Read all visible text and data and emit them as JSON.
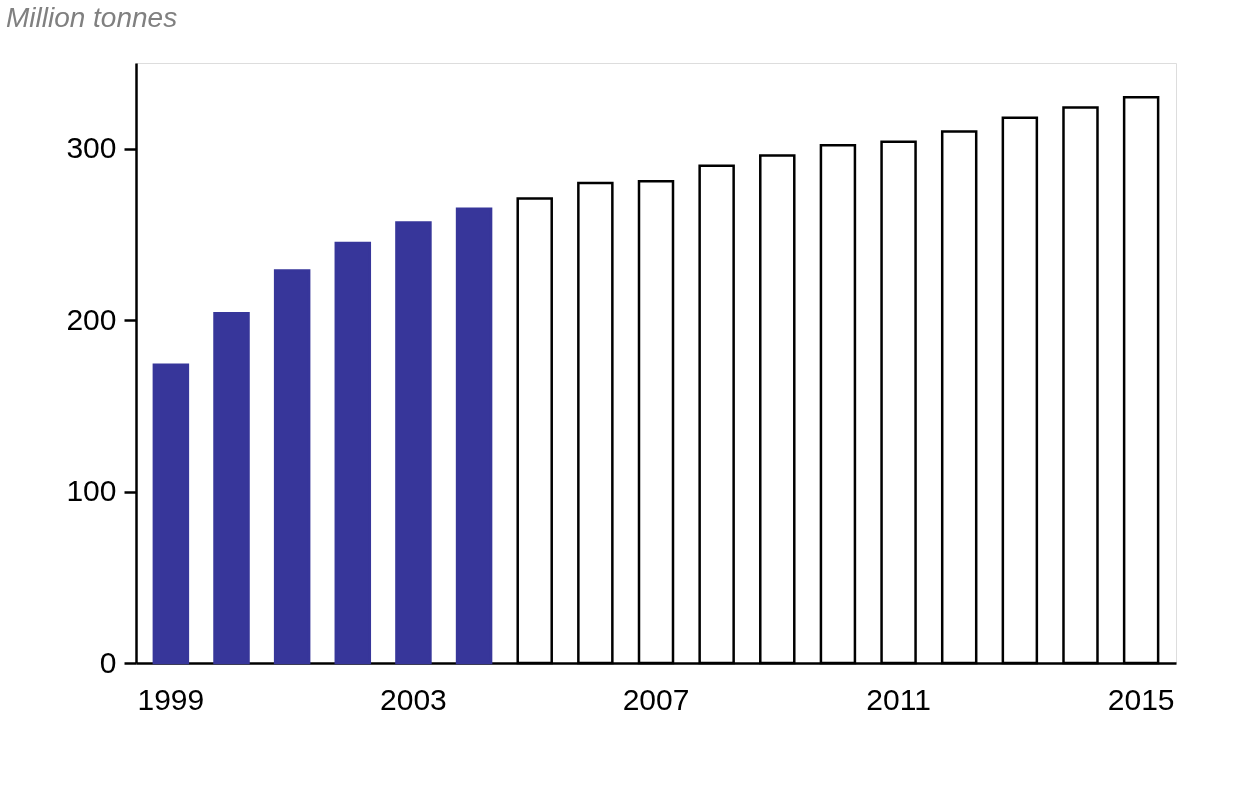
{
  "chart_data": {
    "type": "bar",
    "ylabel": "Million tonnes",
    "categories": [
      "1999",
      null,
      null,
      null,
      "2003",
      null,
      null,
      null,
      "2007",
      null,
      null,
      null,
      "2011",
      null,
      null,
      null,
      "2015"
    ],
    "values": [
      174,
      204,
      229,
      245,
      257,
      265,
      271,
      280,
      281,
      290,
      296,
      302,
      304,
      310,
      318,
      324,
      330
    ],
    "colors": [
      "#37369a",
      "#37369a",
      "#37369a",
      "#37369a",
      "#37369a",
      "#37369a",
      "#ffffff",
      "#ffffff",
      "#ffffff",
      "#ffffff",
      "#ffffff",
      "#ffffff",
      "#ffffff",
      "#ffffff",
      "#ffffff",
      "#ffffff",
      "#ffffff"
    ],
    "ylim": [
      0,
      350
    ],
    "yticks": [
      0,
      100,
      200,
      300
    ],
    "grid": false
  }
}
